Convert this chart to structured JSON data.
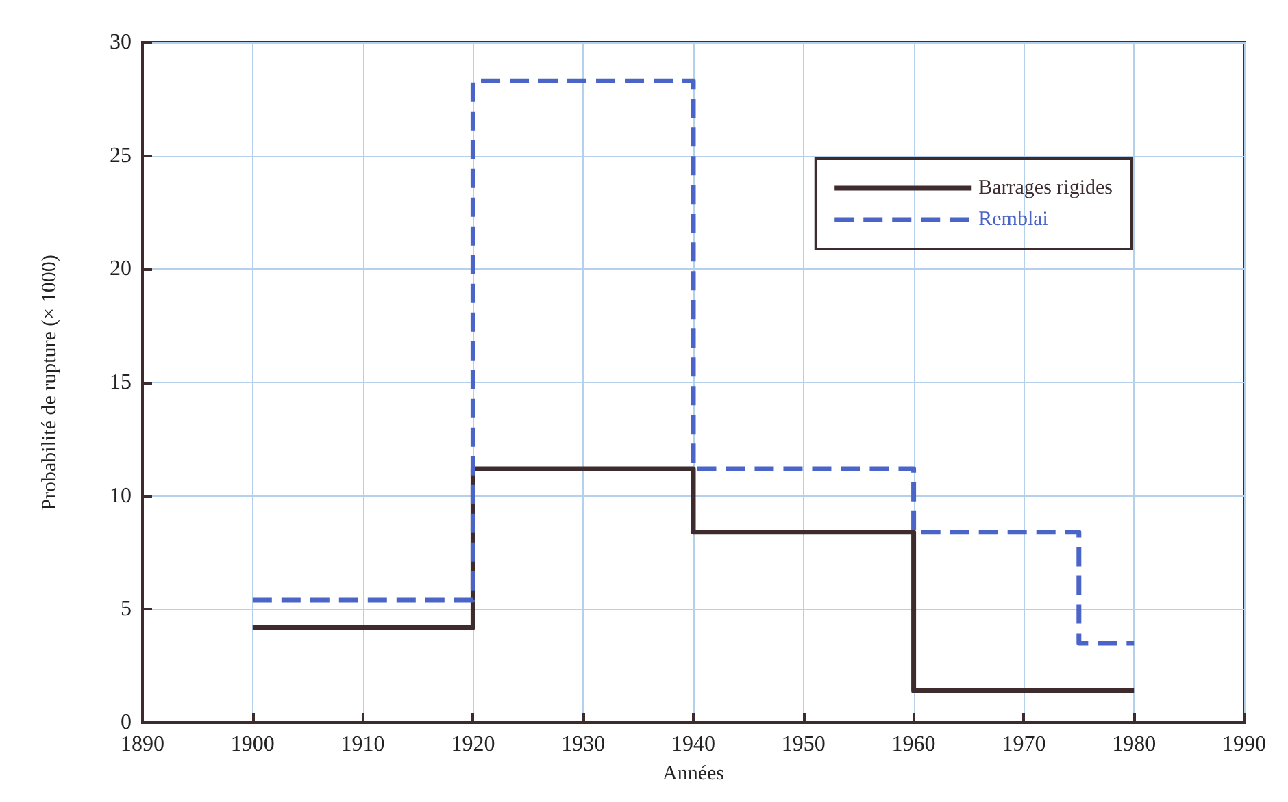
{
  "chart_data": {
    "type": "step",
    "xlabel": "Années",
    "ylabel": "Probabilité de rupture (× 1000)",
    "xlim": [
      1890,
      1990
    ],
    "xticks": [
      1890,
      1900,
      1910,
      1920,
      1930,
      1940,
      1950,
      1960,
      1970,
      1980,
      1990
    ],
    "ylim": [
      0,
      30
    ],
    "yticks": [
      0,
      5,
      10,
      15,
      20,
      25,
      30
    ],
    "grid": true,
    "legend": "top right",
    "marker": "none",
    "series": [
      {
        "name": "Barrages rigides",
        "color": "#3d2b2e",
        "line_style": "solid",
        "x": [
          1900,
          1920,
          1940,
          1960,
          1980
        ],
        "values": [
          4.2,
          11.2,
          8.4,
          1.4,
          1.4
        ]
      },
      {
        "name": "Remblai",
        "color": "#4a64c8",
        "line_style": "dashed",
        "x": [
          1900,
          1920,
          1940,
          1960,
          1975,
          1980
        ],
        "values": [
          5.4,
          28.3,
          11.2,
          8.4,
          3.5,
          3.5
        ]
      }
    ]
  }
}
